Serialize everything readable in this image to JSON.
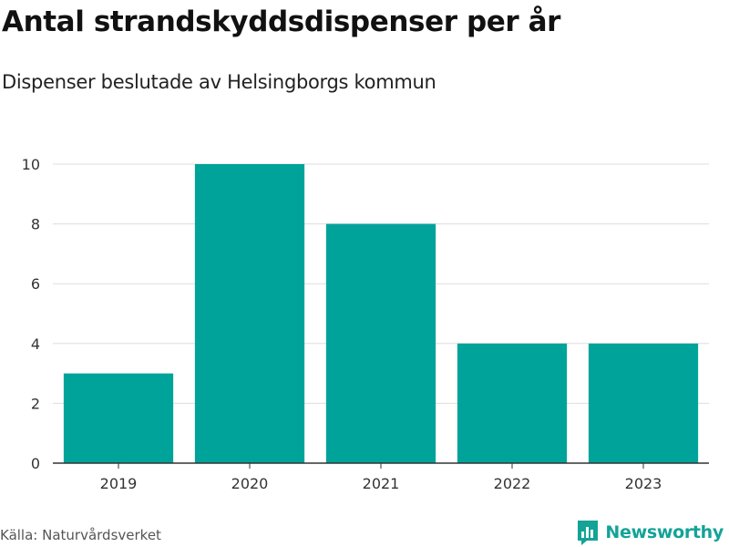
{
  "header": {
    "title": "Antal strandskyddsdispenser per år",
    "subtitle": "Dispenser beslutade av Helsingborgs kommun"
  },
  "footer": {
    "source": "Källa: Naturvårdsverket",
    "brand": "Newsworthy",
    "brand_icon": "bar-chart-speech-bubble-icon"
  },
  "colors": {
    "bar": "#00a39a",
    "grid": "#dddddd",
    "axis": "#333333",
    "brand": "#13a397"
  },
  "chart_data": {
    "type": "bar",
    "categories": [
      "2019",
      "2020",
      "2021",
      "2022",
      "2023"
    ],
    "values": [
      3,
      10,
      8,
      4,
      4
    ],
    "yticks": [
      0,
      2,
      4,
      6,
      8,
      10
    ],
    "ylim": [
      0,
      10
    ],
    "grid": true,
    "legend": "none"
  }
}
